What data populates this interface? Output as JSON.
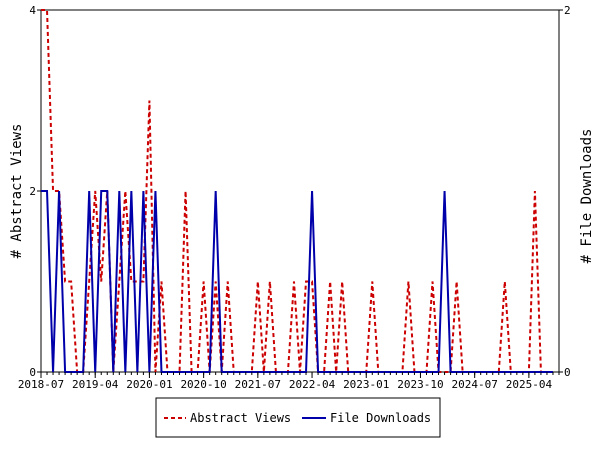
{
  "chart_data": {
    "type": "line",
    "title": "",
    "ylabel": "# Abstract Views",
    "y2label": "# File Downloads",
    "ylim": [
      0,
      4
    ],
    "y2lim": [
      0,
      2
    ],
    "y_ticks": [
      "0",
      "2",
      "4"
    ],
    "y2_ticks": [
      "0",
      "2"
    ],
    "x_tick_labels": [
      "2018-07",
      "2019-04",
      "2020-01",
      "2020-10",
      "2021-07",
      "2022-04",
      "2023-01",
      "2023-10",
      "2024-07",
      "2025-04"
    ],
    "x_tick_months": [
      0,
      9,
      18,
      27,
      36,
      45,
      54,
      63,
      72,
      81
    ],
    "x_start": "2018-07",
    "x_end": "2025-08",
    "grid": false,
    "legend_position": "bottom",
    "series": [
      {
        "name": "Abstract Views",
        "axis": "left",
        "color": "#cc0000",
        "style": "dashed",
        "values": [
          4,
          4,
          2,
          2,
          1,
          1,
          0,
          0,
          1,
          2,
          1,
          2,
          0,
          1,
          2,
          1,
          1,
          1,
          3,
          0,
          1,
          0,
          0,
          0,
          2,
          0,
          0,
          1,
          0,
          1,
          0,
          1,
          0,
          0,
          0,
          0,
          1,
          0,
          1,
          0,
          0,
          0,
          1,
          0,
          1,
          1,
          0,
          0,
          1,
          0,
          1,
          0,
          0,
          0,
          0,
          1,
          0,
          0,
          0,
          0,
          0,
          1,
          0,
          0,
          0,
          1,
          0,
          0,
          0,
          1,
          0,
          0,
          0,
          0,
          0,
          0,
          0,
          1,
          0,
          0,
          0,
          0,
          2,
          0,
          0,
          0
        ]
      },
      {
        "name": "File Downloads",
        "axis": "right",
        "color": "#0000aa",
        "style": "solid",
        "values": [
          1,
          1,
          0,
          1,
          0,
          0,
          0,
          0,
          1,
          0,
          1,
          1,
          0,
          1,
          0,
          1,
          0,
          1,
          0,
          1,
          0,
          0,
          0,
          0,
          0,
          0,
          0,
          0,
          0,
          1,
          0,
          0,
          0,
          0,
          0,
          0,
          0,
          0,
          0,
          0,
          0,
          0,
          0,
          0,
          0,
          1,
          0,
          0,
          0,
          0,
          0,
          0,
          0,
          0,
          0,
          0,
          0,
          0,
          0,
          0,
          0,
          0,
          0,
          0,
          0,
          0,
          0,
          1,
          0,
          0,
          0,
          0,
          0,
          0,
          0,
          0,
          0,
          0,
          0,
          0,
          0,
          0,
          0,
          0,
          0,
          0
        ]
      }
    ]
  }
}
